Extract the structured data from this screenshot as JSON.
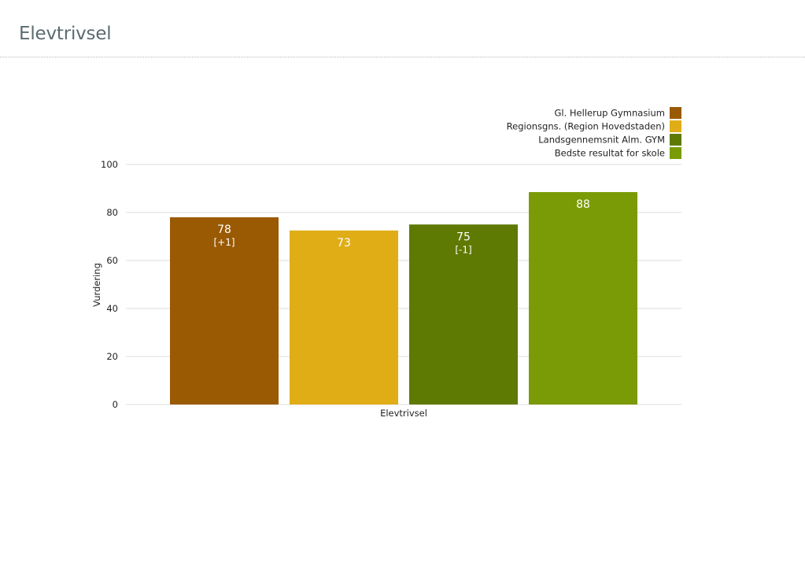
{
  "page": {
    "title": "Elevtrivsel"
  },
  "chart_data": {
    "type": "bar",
    "xlabel": "Elevtrivsel",
    "ylabel": "Vurdering",
    "ylim": [
      0,
      100
    ],
    "yticks": [
      0,
      20,
      40,
      60,
      80,
      100
    ],
    "grid": true,
    "legend_position": "top-right",
    "categories": [
      "Elevtrivsel"
    ],
    "series": [
      {
        "name": "Gl. Hellerup Gymnasium",
        "value": 78,
        "label": "78",
        "sublabel": "[+1]",
        "color": "#9a5a04"
      },
      {
        "name": "Regionsgns. (Region Hovedstaden)",
        "value": 72.5,
        "label": "73",
        "sublabel": "",
        "color": "#e0ad17"
      },
      {
        "name": "Landsgennemsnit Alm. GYM",
        "value": 75,
        "label": "75",
        "sublabel": "[-1]",
        "color": "#5f7a03"
      },
      {
        "name": "Bedste resultat for skole",
        "value": 88.5,
        "label": "88",
        "sublabel": "",
        "color": "#7a9b06"
      }
    ]
  }
}
